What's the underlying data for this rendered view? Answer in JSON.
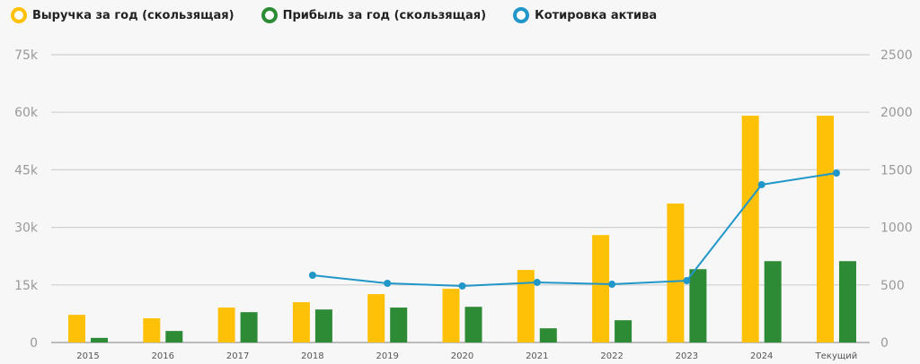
{
  "legend": [
    {
      "label": "Выручка за год (скользящая)",
      "color": "#FFC107"
    },
    {
      "label": "Прибыль за год (скользящая)",
      "color": "#2E8B35"
    },
    {
      "label": "Котировка актива",
      "color": "#2196C9"
    }
  ],
  "chart_data": {
    "type": "bar",
    "categories": [
      "2015",
      "2016",
      "2017",
      "2018",
      "2019",
      "2020",
      "2021",
      "2022",
      "2023",
      "2024",
      "Текущий"
    ],
    "left_axis": {
      "ylim": [
        0,
        75000
      ],
      "ticks": [
        0,
        15000,
        30000,
        45000,
        60000,
        75000
      ],
      "tick_labels": [
        "0",
        "15k",
        "30k",
        "45k",
        "60k",
        "75k"
      ]
    },
    "right_axis": {
      "ylim": [
        0,
        2500
      ],
      "ticks": [
        0,
        500,
        1000,
        1500,
        2000,
        2500
      ],
      "tick_labels": [
        "0",
        "500",
        "1000",
        "1500",
        "2000",
        "2500"
      ]
    },
    "grid": true,
    "legend_position": "top-left",
    "series": [
      {
        "name": "Выручка за год (скользящая)",
        "type": "bar",
        "axis": "left",
        "color": "#FFC107",
        "values": [
          7200,
          6300,
          9100,
          10500,
          12600,
          14000,
          18900,
          28000,
          36200,
          59100,
          59100
        ]
      },
      {
        "name": "Прибыль за год (скользящая)",
        "type": "bar",
        "axis": "left",
        "color": "#2E8B35",
        "values": [
          1200,
          3000,
          7900,
          8600,
          9100,
          9300,
          3700,
          5800,
          19100,
          21200,
          21200
        ]
      },
      {
        "name": "Котировка актива",
        "type": "line",
        "axis": "right",
        "color": "#2196C9",
        "values": [
          null,
          null,
          null,
          584,
          514,
          491,
          522,
          506,
          537,
          1371,
          1472
        ]
      }
    ]
  }
}
